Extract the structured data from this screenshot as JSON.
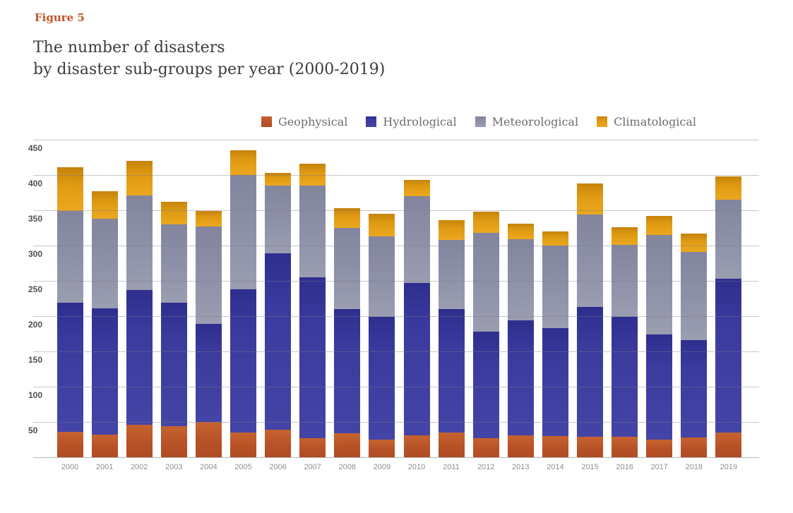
{
  "figure_label": "Figure 5",
  "title_line1": "The number of disasters",
  "title_line2": "by disaster sub-groups per year (2000-2019)",
  "legend": {
    "geophysical_label": "Geophysical",
    "hydrological_label": "Hydrological",
    "meteorological_label": "Meteorological",
    "climatological_label": "Climatological"
  },
  "colors": {
    "geophysical": "#bb5529",
    "hydrological": "#32329b",
    "meteorological": "#8d90a7",
    "climatological": "#e8a01d",
    "figure_label": "#c2552a",
    "gridline": "#c9c9c9"
  },
  "chart_data": {
    "type": "bar",
    "stacked": true,
    "title": "The number of disasters by disaster sub-groups per year (2000-2019)",
    "xlabel": "",
    "ylabel": "",
    "ylim": [
      0,
      450
    ],
    "ytick_labels": [
      "50",
      "100",
      "150",
      "200",
      "250",
      "300",
      "350",
      "400",
      "450"
    ],
    "grid": true,
    "legend_position": "top",
    "categories": [
      "2000",
      "2001",
      "2002",
      "2003",
      "2004",
      "2005",
      "2006",
      "2007",
      "2008",
      "2009",
      "2010",
      "2011",
      "2012",
      "2013",
      "2014",
      "2015",
      "2016",
      "2017",
      "2018",
      "2019"
    ],
    "series": [
      {
        "name": "Geophysical",
        "color": "#bb5529",
        "values": [
          36,
          32,
          46,
          44,
          50,
          35,
          39,
          27,
          34,
          25,
          31,
          35,
          27,
          31,
          30,
          29,
          29,
          25,
          28,
          35
        ]
      },
      {
        "name": "Hydrological",
        "color": "#32329b",
        "values": [
          183,
          179,
          191,
          175,
          139,
          203,
          250,
          228,
          176,
          174,
          216,
          175,
          151,
          163,
          153,
          184,
          170,
          149,
          138,
          218
        ]
      },
      {
        "name": "Meteorological",
        "color": "#8d90a7",
        "values": [
          130,
          127,
          134,
          111,
          138,
          162,
          96,
          130,
          115,
          114,
          123,
          98,
          140,
          115,
          117,
          131,
          102,
          141,
          125,
          112
        ]
      },
      {
        "name": "Climatological",
        "color": "#e8a01d",
        "values": [
          62,
          39,
          49,
          32,
          22,
          35,
          18,
          31,
          28,
          32,
          23,
          28,
          30,
          22,
          20,
          44,
          25,
          27,
          26,
          33
        ]
      }
    ],
    "totals": [
      411,
      377,
      420,
      362,
      349,
      435,
      403,
      416,
      353,
      345,
      393,
      336,
      348,
      331,
      320,
      388,
      326,
      342,
      317,
      398
    ]
  }
}
